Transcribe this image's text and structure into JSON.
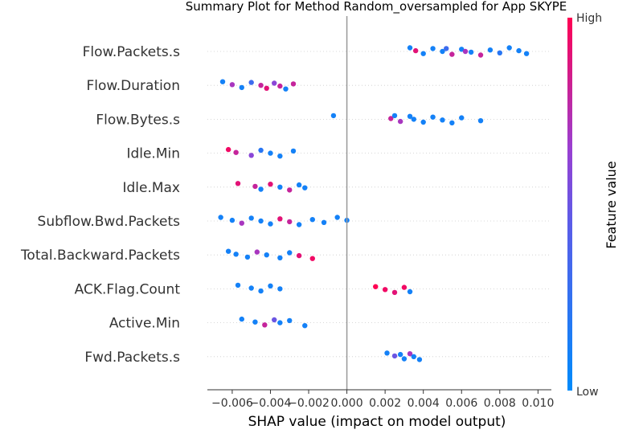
{
  "chart_data": {
    "type": "scatter",
    "title": "Summary Plot for Method Random_oversampled for App SKYPE",
    "xlabel": "SHAP value (impact on model output)",
    "xlim": [
      -0.0073,
      0.0107
    ],
    "x_ticks": [
      "−0.006",
      "−0.004",
      "−0.002",
      "0.000",
      "0.002",
      "0.004",
      "0.006",
      "0.008",
      "0.010"
    ],
    "x_tick_values": [
      -0.006,
      -0.004,
      -0.002,
      0.0,
      0.002,
      0.004,
      0.006,
      0.008,
      0.01
    ],
    "zero_line": 0.0,
    "colorbar": {
      "title": "Feature value",
      "high_label": "High",
      "low_label": "Low",
      "high_color": "#ff0052",
      "low_color": "#008bfb"
    },
    "features": [
      {
        "name": "Flow.Packets.s",
        "points": [
          [
            0.0033,
            0.1
          ],
          [
            0.0036,
            0.9
          ],
          [
            0.004,
            0.1
          ],
          [
            0.0045,
            0.1
          ],
          [
            0.005,
            0.1
          ],
          [
            0.0055,
            0.8
          ],
          [
            0.006,
            0.1
          ],
          [
            0.0065,
            0.1
          ],
          [
            0.007,
            0.8
          ],
          [
            0.0075,
            0.1
          ],
          [
            0.008,
            0.2
          ],
          [
            0.0085,
            0.1
          ],
          [
            0.009,
            0.1
          ],
          [
            0.0094,
            0.1
          ],
          [
            0.0052,
            0.3
          ],
          [
            0.0062,
            0.7
          ]
        ]
      },
      {
        "name": "Flow.Duration",
        "points": [
          [
            -0.0065,
            0.1
          ],
          [
            -0.006,
            0.7
          ],
          [
            -0.0055,
            0.1
          ],
          [
            -0.005,
            0.3
          ],
          [
            -0.0045,
            0.8
          ],
          [
            -0.0042,
            0.9
          ],
          [
            -0.0038,
            0.6
          ],
          [
            -0.0035,
            0.8
          ],
          [
            -0.0032,
            0.1
          ],
          [
            -0.0028,
            0.8
          ]
        ]
      },
      {
        "name": "Flow.Bytes.s",
        "points": [
          [
            -0.0007,
            0.1
          ],
          [
            0.0023,
            0.8
          ],
          [
            0.0028,
            0.7
          ],
          [
            0.0033,
            0.1
          ],
          [
            0.0035,
            0.1
          ],
          [
            0.004,
            0.1
          ],
          [
            0.0045,
            0.1
          ],
          [
            0.005,
            0.1
          ],
          [
            0.0055,
            0.1
          ],
          [
            0.006,
            0.1
          ],
          [
            0.007,
            0.1
          ],
          [
            0.0025,
            0.1
          ]
        ]
      },
      {
        "name": "Idle.Min",
        "points": [
          [
            -0.0062,
            0.95
          ],
          [
            -0.0058,
            0.8
          ],
          [
            -0.005,
            0.6
          ],
          [
            -0.0045,
            0.2
          ],
          [
            -0.004,
            0.1
          ],
          [
            -0.0035,
            0.1
          ],
          [
            -0.0028,
            0.1
          ]
        ]
      },
      {
        "name": "Idle.Max",
        "points": [
          [
            -0.0057,
            0.9
          ],
          [
            -0.0048,
            0.8
          ],
          [
            -0.0045,
            0.1
          ],
          [
            -0.004,
            0.9
          ],
          [
            -0.0035,
            0.1
          ],
          [
            -0.003,
            0.8
          ],
          [
            -0.0025,
            0.1
          ],
          [
            -0.0022,
            0.1
          ]
        ]
      },
      {
        "name": "Subflow.Bwd.Packets",
        "points": [
          [
            -0.0066,
            0.1
          ],
          [
            -0.006,
            0.1
          ],
          [
            -0.0055,
            0.7
          ],
          [
            -0.005,
            0.1
          ],
          [
            -0.0045,
            0.1
          ],
          [
            -0.004,
            0.1
          ],
          [
            -0.0035,
            0.9
          ],
          [
            -0.003,
            0.8
          ],
          [
            -0.0025,
            0.1
          ],
          [
            -0.0018,
            0.1
          ],
          [
            -0.0012,
            0.1
          ],
          [
            -0.0005,
            0.1
          ],
          [
            0.0,
            0.1
          ]
        ]
      },
      {
        "name": "Total.Backward.Packets",
        "points": [
          [
            -0.0062,
            0.1
          ],
          [
            -0.0058,
            0.1
          ],
          [
            -0.0052,
            0.1
          ],
          [
            -0.0047,
            0.7
          ],
          [
            -0.0042,
            0.1
          ],
          [
            -0.0035,
            0.1
          ],
          [
            -0.003,
            0.1
          ],
          [
            -0.0025,
            0.9
          ],
          [
            -0.0018,
            0.95
          ]
        ]
      },
      {
        "name": "ACK.Flag.Count",
        "points": [
          [
            -0.0057,
            0.1
          ],
          [
            -0.005,
            0.1
          ],
          [
            -0.0045,
            0.1
          ],
          [
            -0.004,
            0.1
          ],
          [
            -0.0035,
            0.1
          ],
          [
            0.0033,
            0.1
          ],
          [
            0.0015,
            1.0
          ],
          [
            0.002,
            0.95
          ],
          [
            0.0025,
            0.9
          ],
          [
            0.003,
            0.95
          ]
        ]
      },
      {
        "name": "Active.Min",
        "points": [
          [
            -0.0055,
            0.1
          ],
          [
            -0.0048,
            0.1
          ],
          [
            -0.0043,
            0.8
          ],
          [
            -0.0038,
            0.5
          ],
          [
            -0.0035,
            0.1
          ],
          [
            -0.0022,
            0.1
          ],
          [
            -0.003,
            0.1
          ]
        ]
      },
      {
        "name": "Fwd.Packets.s",
        "points": [
          [
            0.0021,
            0.1
          ],
          [
            0.0025,
            0.5
          ],
          [
            0.003,
            0.1
          ],
          [
            0.0033,
            0.7
          ],
          [
            0.0035,
            0.1
          ],
          [
            0.0038,
            0.1
          ],
          [
            0.0028,
            0.1
          ]
        ]
      }
    ]
  }
}
